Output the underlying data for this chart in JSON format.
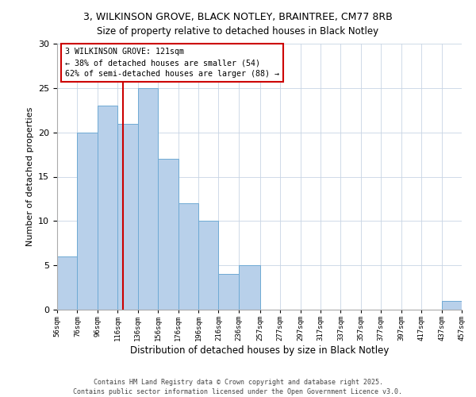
{
  "title_line1": "3, WILKINSON GROVE, BLACK NOTLEY, BRAINTREE, CM77 8RB",
  "title_line2": "Size of property relative to detached houses in Black Notley",
  "xlabel": "Distribution of detached houses by size in Black Notley",
  "ylabel": "Number of detached properties",
  "bar_edges": [
    56,
    76,
    96,
    116,
    136,
    156,
    176,
    196,
    216,
    236,
    257,
    277,
    297,
    317,
    337,
    357,
    377,
    397,
    417,
    437,
    457
  ],
  "bar_heights": [
    6,
    20,
    23,
    21,
    25,
    17,
    12,
    10,
    4,
    5,
    0,
    0,
    0,
    0,
    0,
    0,
    0,
    0,
    0,
    1
  ],
  "bar_color": "#b8d0ea",
  "bar_edge_color": "#6faad4",
  "vline_x": 121,
  "vline_color": "#cc0000",
  "annotation_text": "3 WILKINSON GROVE: 121sqm\n← 38% of detached houses are smaller (54)\n62% of semi-detached houses are larger (88) →",
  "annotation_box_color": "#cc0000",
  "ylim": [
    0,
    30
  ],
  "yticks": [
    0,
    5,
    10,
    15,
    20,
    25,
    30
  ],
  "bg_color": "#ffffff",
  "grid_color": "#c8d4e4",
  "footer_line1": "Contains HM Land Registry data © Crown copyright and database right 2025.",
  "footer_line2": "Contains public sector information licensed under the Open Government Licence v3.0.",
  "tick_labels": [
    "56sqm",
    "76sqm",
    "96sqm",
    "116sqm",
    "136sqm",
    "156sqm",
    "176sqm",
    "196sqm",
    "216sqm",
    "236sqm",
    "257sqm",
    "277sqm",
    "297sqm",
    "317sqm",
    "337sqm",
    "357sqm",
    "377sqm",
    "397sqm",
    "417sqm",
    "437sqm",
    "457sqm"
  ]
}
